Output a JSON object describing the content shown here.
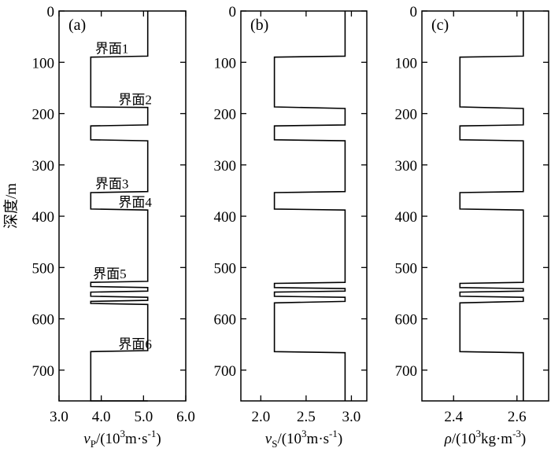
{
  "chart_data": [
    {
      "panel": "(a)",
      "type": "line",
      "xlabel": {
        "symbol": "v",
        "subscript": "P",
        "unit": "/(10",
        "sup": "3",
        "unit_rest": "m·s",
        "sup2": "-1",
        "close": ")"
      },
      "ylabel": "深度/m",
      "xlim": [
        3.0,
        6.0
      ],
      "ylim": [
        760,
        0
      ],
      "xticks": [
        3.0,
        4.0,
        5.0,
        6.0
      ],
      "xtick_labels": [
        "3.0",
        "4.0",
        "5.0",
        "6.0"
      ],
      "yticks": [
        0,
        100,
        200,
        300,
        400,
        500,
        600,
        700
      ],
      "ytick_labels": [
        "0",
        "100",
        "200",
        "300",
        "400",
        "500",
        "600",
        "700"
      ],
      "grid": false,
      "series": [
        {
          "x": [
            5.1,
            5.1,
            3.75,
            3.75,
            5.1,
            5.1,
            3.75,
            3.75,
            5.1,
            5.1,
            3.75,
            3.75,
            5.1,
            5.1,
            3.75,
            3.75,
            5.1,
            5.1,
            3.75,
            3.75,
            5.1,
            5.1,
            3.75,
            3.75,
            5.1,
            5.1,
            3.75,
            3.75,
            5.1,
            5.1
          ],
          "y": [
            0,
            88,
            90,
            187,
            188,
            222,
            224,
            251,
            253,
            352,
            354,
            386,
            388,
            527,
            529,
            537,
            539,
            546,
            548,
            556,
            558,
            564,
            566,
            570,
            572,
            662,
            664,
            760,
            760,
            760
          ]
        }
      ],
      "annotations": [
        {
          "text": "界面1",
          "x": 4.25,
          "y": 88
        },
        {
          "text": "界面2",
          "x": 4.8,
          "y": 188
        },
        {
          "text": "界面3",
          "x": 4.25,
          "y": 352
        },
        {
          "text": "界面4",
          "x": 4.8,
          "y": 388
        },
        {
          "text": "界面5",
          "x": 4.2,
          "y": 527
        },
        {
          "text": "界面6",
          "x": 4.8,
          "y": 664
        }
      ]
    },
    {
      "panel": "(b)",
      "type": "line",
      "xlabel": {
        "symbol": "v",
        "subscript": "S",
        "unit": "/(10",
        "sup": "3",
        "unit_rest": "m·s",
        "sup2": "-1",
        "close": ")"
      },
      "xlim": [
        1.78,
        3.17
      ],
      "ylim": [
        760,
        0
      ],
      "xticks": [
        2.0,
        2.5,
        3.0
      ],
      "xtick_labels": [
        "2.0",
        "2.5",
        "3.0"
      ],
      "yticks": [
        0,
        100,
        200,
        300,
        400,
        500,
        600,
        700
      ],
      "ytick_labels": [
        "0",
        "100",
        "200",
        "300",
        "400",
        "500",
        "600",
        "700"
      ],
      "grid": false,
      "series": [
        {
          "x": [
            2.93,
            2.93,
            2.15,
            2.15,
            2.93,
            2.93,
            2.15,
            2.15,
            2.93,
            2.93,
            2.15,
            2.15,
            2.93,
            2.93,
            2.15,
            2.15,
            2.93,
            2.93,
            2.15,
            2.15,
            2.93,
            2.93,
            2.15,
            2.15,
            2.93,
            2.93
          ],
          "y": [
            0,
            88,
            90,
            187,
            190,
            222,
            224,
            251,
            253,
            352,
            354,
            386,
            388,
            529,
            531,
            539,
            541,
            546,
            548,
            556,
            558,
            566,
            569,
            664,
            666,
            760
          ]
        }
      ]
    },
    {
      "panel": "(c)",
      "type": "line",
      "xlabel": {
        "symbol": "ρ",
        "subscript": "",
        "unit": "/(10",
        "sup": "3",
        "unit_rest": "kg·m",
        "sup2": "-3",
        "close": ")"
      },
      "xlim": [
        2.3,
        2.7
      ],
      "ylim": [
        760,
        0
      ],
      "xticks": [
        2.4,
        2.6
      ],
      "xtick_labels": [
        "2.4",
        "2.6"
      ],
      "yticks": [
        0,
        100,
        200,
        300,
        400,
        500,
        600,
        700
      ],
      "ytick_labels": [
        "0",
        "100",
        "200",
        "300",
        "400",
        "500",
        "600",
        "700"
      ],
      "grid": false,
      "series": [
        {
          "x": [
            2.62,
            2.62,
            2.42,
            2.42,
            2.62,
            2.62,
            2.42,
            2.42,
            2.62,
            2.62,
            2.42,
            2.42,
            2.62,
            2.62,
            2.42,
            2.42,
            2.62,
            2.62,
            2.42,
            2.42,
            2.62,
            2.62,
            2.42,
            2.42,
            2.62,
            2.62
          ],
          "y": [
            0,
            88,
            90,
            187,
            190,
            222,
            224,
            251,
            253,
            352,
            354,
            386,
            388,
            529,
            531,
            539,
            541,
            546,
            548,
            556,
            558,
            566,
            569,
            664,
            666,
            760
          ]
        }
      ]
    }
  ]
}
